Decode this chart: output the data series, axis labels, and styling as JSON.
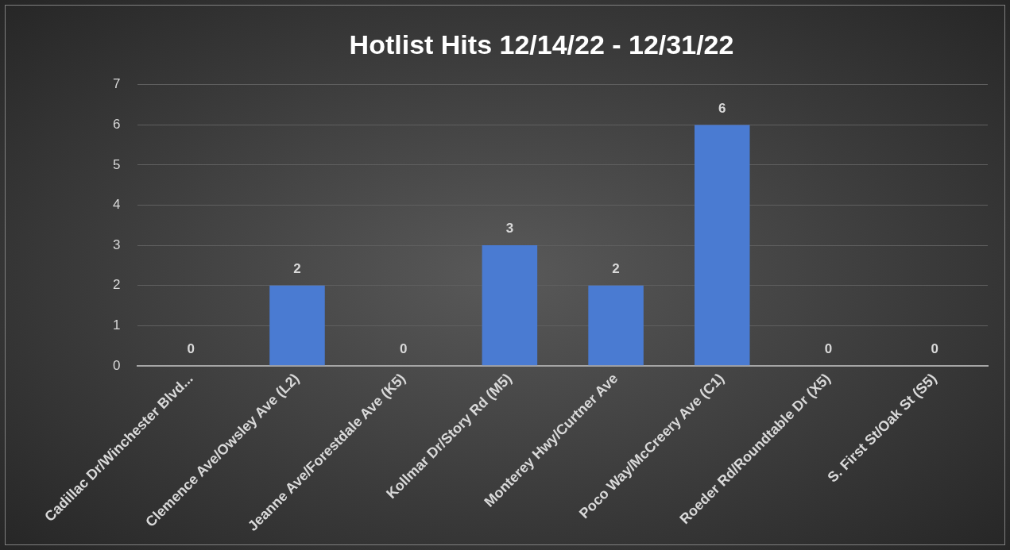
{
  "chart_data": {
    "type": "bar",
    "title": "Hotlist Hits 12/14/22 - 12/31/22",
    "categories": [
      "Cadillac Dr/Winchester Blvd...",
      "Clemence Ave/Owsley Ave (L2)",
      "Jeanne Ave/Forestdale Ave (K5)",
      "Kollmar Dr/Story Rd (M5)",
      "Monterey Hwy/Curtner Ave",
      "Poco Way/McCreery Ave (C1)",
      "Roeder Rd/Roundtable Dr (X5)",
      "S. First St/Oak St (S5)"
    ],
    "values": [
      0,
      2,
      0,
      3,
      2,
      6,
      0,
      0
    ],
    "color": "#4a7bd2",
    "ylim": [
      0,
      7
    ],
    "yticks": [
      0,
      1,
      2,
      3,
      4,
      5,
      6,
      7
    ],
    "grid": "y",
    "legend": false,
    "data_labels": true
  }
}
